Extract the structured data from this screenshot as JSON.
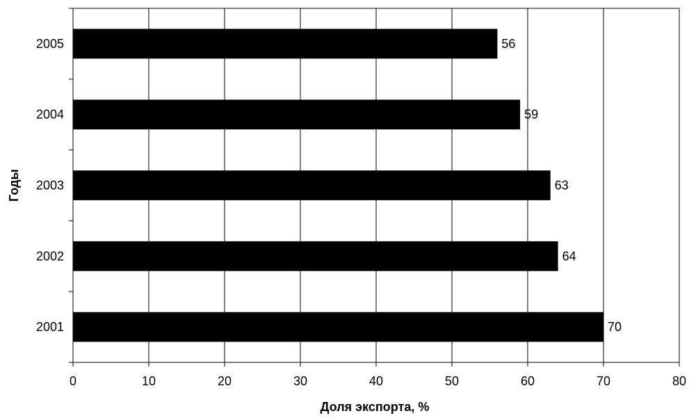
{
  "chart_data": {
    "type": "bar",
    "orientation": "horizontal",
    "title": "",
    "xlabel": "Доля экспорта, %",
    "ylabel": "Годы",
    "categories": [
      "2001",
      "2002",
      "2003",
      "2004",
      "2005"
    ],
    "values": [
      70,
      64,
      63,
      59,
      56
    ],
    "data_labels": [
      "70",
      "64",
      "63",
      "59",
      "56"
    ],
    "xlim": [
      0,
      80
    ],
    "x_ticks": [
      "0",
      "10",
      "20",
      "30",
      "40",
      "50",
      "60",
      "70",
      "80"
    ],
    "grid": "vertical",
    "legend": "none",
    "bar_color": "#000000"
  }
}
